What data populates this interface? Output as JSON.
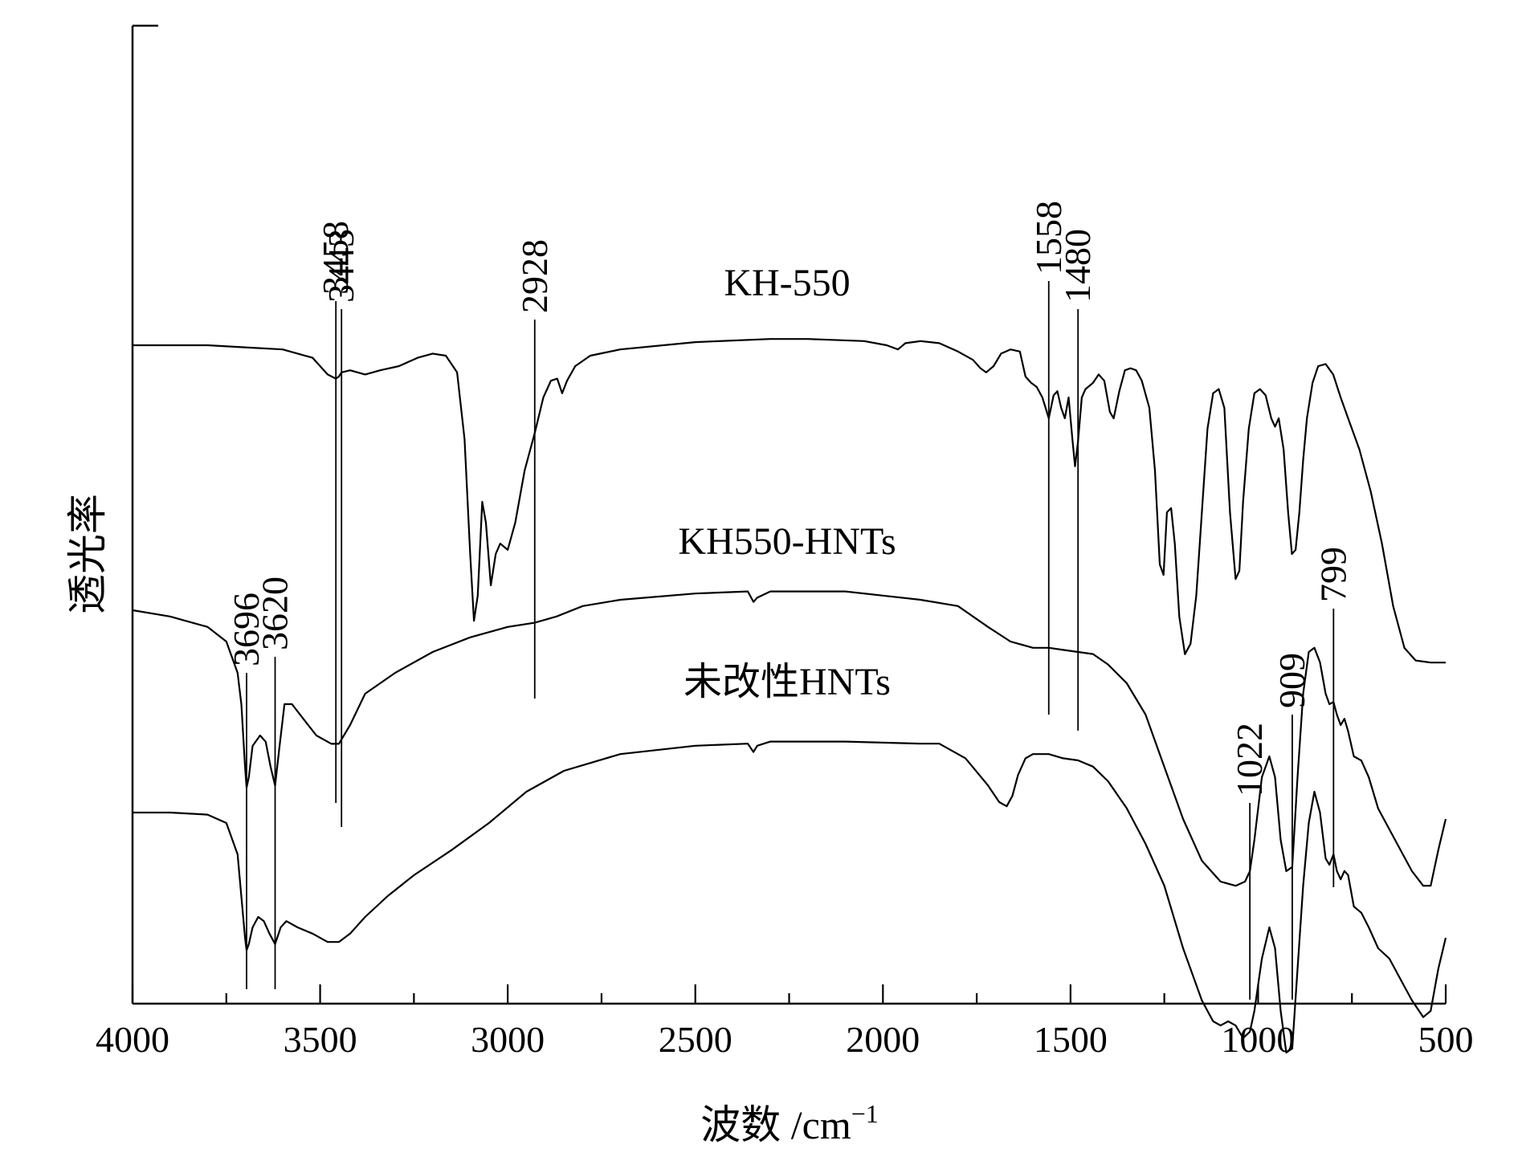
{
  "chart_data": {
    "type": "line",
    "title": "",
    "xlabel": "波数 /cm",
    "xlabel_sup": "−1",
    "ylabel": "透光率",
    "xlim": [
      4000,
      500
    ],
    "x_reversed": true,
    "grid": false,
    "xticks": [
      "4000",
      "3500",
      "3000",
      "2500",
      "2000",
      "1500",
      "1000",
      "500"
    ],
    "series": [
      {
        "name": "KH-550",
        "points": [
          [
            4000,
            0.0
          ],
          [
            3800,
            0.0
          ],
          [
            3700,
            -0.1
          ],
          [
            3600,
            -0.2
          ],
          [
            3520,
            -0.6
          ],
          [
            3480,
            -1.4
          ],
          [
            3458,
            -1.6
          ],
          [
            3450,
            -1.5
          ],
          [
            3443,
            -1.3
          ],
          [
            3420,
            -1.2
          ],
          [
            3380,
            -1.4
          ],
          [
            3340,
            -1.2
          ],
          [
            3290,
            -1.0
          ],
          [
            3240,
            -0.6
          ],
          [
            3200,
            -0.4
          ],
          [
            3165,
            -0.5
          ],
          [
            3135,
            -1.3
          ],
          [
            3115,
            -4.5
          ],
          [
            3100,
            -10.0
          ],
          [
            3090,
            -13.2
          ],
          [
            3080,
            -12.0
          ],
          [
            3068,
            -7.5
          ],
          [
            3058,
            -8.5
          ],
          [
            3045,
            -11.5
          ],
          [
            3032,
            -10.0
          ],
          [
            3020,
            -9.5
          ],
          [
            3000,
            -9.8
          ],
          [
            2980,
            -8.5
          ],
          [
            2955,
            -6.0
          ],
          [
            2928,
            -4.2
          ],
          [
            2905,
            -2.5
          ],
          [
            2885,
            -1.7
          ],
          [
            2868,
            -1.6
          ],
          [
            2855,
            -2.3
          ],
          [
            2842,
            -1.7
          ],
          [
            2820,
            -1.0
          ],
          [
            2780,
            -0.5
          ],
          [
            2700,
            -0.2
          ],
          [
            2500,
            0.15
          ],
          [
            2300,
            0.3
          ],
          [
            2200,
            0.3
          ],
          [
            2050,
            0.2
          ],
          [
            1990,
            0.0
          ],
          [
            1960,
            -0.2
          ],
          [
            1940,
            0.1
          ],
          [
            1900,
            0.2
          ],
          [
            1850,
            0.1
          ],
          [
            1800,
            -0.3
          ],
          [
            1760,
            -0.7
          ],
          [
            1740,
            -1.1
          ],
          [
            1725,
            -1.3
          ],
          [
            1705,
            -1.0
          ],
          [
            1685,
            -0.4
          ],
          [
            1660,
            -0.2
          ],
          [
            1635,
            -0.3
          ],
          [
            1620,
            -1.5
          ],
          [
            1605,
            -1.8
          ],
          [
            1590,
            -2.0
          ],
          [
            1575,
            -2.5
          ],
          [
            1558,
            -3.5
          ],
          [
            1545,
            -2.4
          ],
          [
            1535,
            -2.2
          ],
          [
            1525,
            -3.0
          ],
          [
            1515,
            -3.5
          ],
          [
            1505,
            -2.5
          ],
          [
            1495,
            -4.5
          ],
          [
            1488,
            -5.8
          ],
          [
            1480,
            -4.6
          ],
          [
            1470,
            -2.5
          ],
          [
            1460,
            -2.1
          ],
          [
            1440,
            -1.8
          ],
          [
            1425,
            -1.4
          ],
          [
            1410,
            -1.7
          ],
          [
            1395,
            -3.2
          ],
          [
            1385,
            -3.5
          ],
          [
            1370,
            -2.2
          ],
          [
            1355,
            -1.2
          ],
          [
            1340,
            -1.1
          ],
          [
            1325,
            -1.2
          ],
          [
            1310,
            -1.7
          ],
          [
            1290,
            -3.0
          ],
          [
            1275,
            -6.0
          ],
          [
            1262,
            -10.5
          ],
          [
            1252,
            -11.0
          ],
          [
            1243,
            -8.0
          ],
          [
            1232,
            -7.8
          ],
          [
            1222,
            -9.5
          ],
          [
            1210,
            -13.0
          ],
          [
            1195,
            -14.8
          ],
          [
            1180,
            -14.3
          ],
          [
            1165,
            -12.0
          ],
          [
            1150,
            -8.0
          ],
          [
            1135,
            -4.0
          ],
          [
            1120,
            -2.3
          ],
          [
            1105,
            -2.1
          ],
          [
            1090,
            -3.0
          ],
          [
            1075,
            -8.0
          ],
          [
            1060,
            -11.2
          ],
          [
            1050,
            -10.8
          ],
          [
            1040,
            -7.5
          ],
          [
            1025,
            -4.0
          ],
          [
            1010,
            -2.3
          ],
          [
            995,
            -2.1
          ],
          [
            980,
            -2.4
          ],
          [
            965,
            -3.5
          ],
          [
            955,
            -3.9
          ],
          [
            945,
            -3.5
          ],
          [
            932,
            -5.0
          ],
          [
            920,
            -8.0
          ],
          [
            910,
            -10.0
          ],
          [
            900,
            -9.8
          ],
          [
            890,
            -8.0
          ],
          [
            880,
            -5.5
          ],
          [
            870,
            -3.5
          ],
          [
            855,
            -1.8
          ],
          [
            840,
            -1.0
          ],
          [
            820,
            -0.9
          ],
          [
            800,
            -1.4
          ],
          [
            780,
            -2.5
          ],
          [
            760,
            -3.5
          ],
          [
            730,
            -5.0
          ],
          [
            700,
            -7.0
          ],
          [
            670,
            -9.5
          ],
          [
            640,
            -12.5
          ],
          [
            610,
            -14.5
          ],
          [
            580,
            -15.1
          ],
          [
            540,
            -15.2
          ],
          [
            500,
            -15.2
          ]
        ]
      },
      {
        "name": "KH550-HNTs",
        "points": [
          [
            4000,
            0.0
          ],
          [
            3900,
            -0.3
          ],
          [
            3800,
            -0.8
          ],
          [
            3750,
            -1.5
          ],
          [
            3720,
            -3.0
          ],
          [
            3710,
            -4.5
          ],
          [
            3700,
            -7.5
          ],
          [
            3696,
            -8.5
          ],
          [
            3690,
            -8.0
          ],
          [
            3680,
            -6.5
          ],
          [
            3660,
            -6.0
          ],
          [
            3645,
            -6.3
          ],
          [
            3632,
            -7.5
          ],
          [
            3620,
            -8.4
          ],
          [
            3608,
            -6.5
          ],
          [
            3595,
            -4.5
          ],
          [
            3575,
            -4.5
          ],
          [
            3545,
            -5.2
          ],
          [
            3510,
            -6.0
          ],
          [
            3490,
            -6.2
          ],
          [
            3470,
            -6.4
          ],
          [
            3450,
            -6.4
          ],
          [
            3420,
            -5.5
          ],
          [
            3380,
            -4.0
          ],
          [
            3300,
            -3.0
          ],
          [
            3200,
            -2.0
          ],
          [
            3100,
            -1.3
          ],
          [
            3000,
            -0.8
          ],
          [
            2928,
            -0.6
          ],
          [
            2870,
            -0.3
          ],
          [
            2800,
            0.2
          ],
          [
            2700,
            0.5
          ],
          [
            2500,
            0.8
          ],
          [
            2360,
            0.9
          ],
          [
            2345,
            0.4
          ],
          [
            2335,
            0.6
          ],
          [
            2300,
            0.9
          ],
          [
            2100,
            0.9
          ],
          [
            2000,
            0.7
          ],
          [
            1900,
            0.5
          ],
          [
            1800,
            0.2
          ],
          [
            1720,
            -0.8
          ],
          [
            1660,
            -1.5
          ],
          [
            1600,
            -1.8
          ],
          [
            1558,
            -1.8
          ],
          [
            1520,
            -1.9
          ],
          [
            1480,
            -2.0
          ],
          [
            1440,
            -2.1
          ],
          [
            1400,
            -2.6
          ],
          [
            1350,
            -3.5
          ],
          [
            1300,
            -5.0
          ],
          [
            1250,
            -7.5
          ],
          [
            1200,
            -10.0
          ],
          [
            1150,
            -12.0
          ],
          [
            1100,
            -13.0
          ],
          [
            1060,
            -13.2
          ],
          [
            1035,
            -13.0
          ],
          [
            1022,
            -12.5
          ],
          [
            1010,
            -11.0
          ],
          [
            990,
            -8.0
          ],
          [
            970,
            -7.0
          ],
          [
            955,
            -8.0
          ],
          [
            940,
            -11.0
          ],
          [
            925,
            -12.5
          ],
          [
            909,
            -12.3
          ],
          [
            895,
            -8.0
          ],
          [
            880,
            -4.0
          ],
          [
            865,
            -2.0
          ],
          [
            850,
            -1.8
          ],
          [
            835,
            -2.5
          ],
          [
            820,
            -4.0
          ],
          [
            810,
            -4.5
          ],
          [
            799,
            -4.4
          ],
          [
            790,
            -5.0
          ],
          [
            780,
            -5.5
          ],
          [
            770,
            -5.2
          ],
          [
            760,
            -5.8
          ],
          [
            745,
            -7.0
          ],
          [
            725,
            -7.2
          ],
          [
            705,
            -8.0
          ],
          [
            680,
            -9.5
          ],
          [
            650,
            -10.5
          ],
          [
            620,
            -11.5
          ],
          [
            590,
            -12.5
          ],
          [
            560,
            -13.2
          ],
          [
            540,
            -13.2
          ],
          [
            520,
            -11.5
          ],
          [
            500,
            -10.0
          ]
        ]
      },
      {
        "name": "未改性HNTs",
        "points": [
          [
            4000,
            0.0
          ],
          [
            3900,
            0.0
          ],
          [
            3800,
            -0.1
          ],
          [
            3750,
            -0.5
          ],
          [
            3720,
            -2.0
          ],
          [
            3700,
            -6.0
          ],
          [
            3696,
            -6.6
          ],
          [
            3690,
            -6.3
          ],
          [
            3680,
            -5.5
          ],
          [
            3665,
            -5.0
          ],
          [
            3650,
            -5.2
          ],
          [
            3635,
            -5.8
          ],
          [
            3620,
            -6.3
          ],
          [
            3605,
            -5.5
          ],
          [
            3590,
            -5.2
          ],
          [
            3560,
            -5.5
          ],
          [
            3520,
            -5.8
          ],
          [
            3480,
            -6.2
          ],
          [
            3450,
            -6.2
          ],
          [
            3420,
            -5.8
          ],
          [
            3380,
            -5.0
          ],
          [
            3320,
            -4.0
          ],
          [
            3250,
            -3.0
          ],
          [
            3150,
            -1.8
          ],
          [
            3050,
            -0.5
          ],
          [
            2950,
            1.0
          ],
          [
            2850,
            2.0
          ],
          [
            2700,
            2.8
          ],
          [
            2500,
            3.2
          ],
          [
            2360,
            3.3
          ],
          [
            2345,
            2.9
          ],
          [
            2335,
            3.2
          ],
          [
            2300,
            3.4
          ],
          [
            2100,
            3.4
          ],
          [
            1900,
            3.3
          ],
          [
            1850,
            3.3
          ],
          [
            1780,
            2.6
          ],
          [
            1720,
            1.3
          ],
          [
            1690,
            0.5
          ],
          [
            1670,
            0.3
          ],
          [
            1655,
            0.8
          ],
          [
            1640,
            1.8
          ],
          [
            1620,
            2.6
          ],
          [
            1600,
            2.8
          ],
          [
            1558,
            2.8
          ],
          [
            1520,
            2.6
          ],
          [
            1480,
            2.5
          ],
          [
            1440,
            2.2
          ],
          [
            1400,
            1.5
          ],
          [
            1350,
            0.2
          ],
          [
            1300,
            -1.5
          ],
          [
            1250,
            -3.5
          ],
          [
            1200,
            -6.5
          ],
          [
            1150,
            -9.0
          ],
          [
            1120,
            -10.0
          ],
          [
            1100,
            -10.2
          ],
          [
            1080,
            -10.0
          ],
          [
            1060,
            -10.2
          ],
          [
            1040,
            -10.8
          ],
          [
            1022,
            -10.5
          ],
          [
            1010,
            -9.5
          ],
          [
            990,
            -7.0
          ],
          [
            970,
            -5.5
          ],
          [
            955,
            -6.5
          ],
          [
            940,
            -9.5
          ],
          [
            925,
            -11.5
          ],
          [
            909,
            -11.3
          ],
          [
            895,
            -7.5
          ],
          [
            880,
            -3.5
          ],
          [
            865,
            -0.5
          ],
          [
            850,
            1.0
          ],
          [
            835,
            0.0
          ],
          [
            820,
            -2.2
          ],
          [
            810,
            -2.5
          ],
          [
            799,
            -2.0
          ],
          [
            790,
            -2.8
          ],
          [
            780,
            -3.2
          ],
          [
            770,
            -2.8
          ],
          [
            760,
            -3.0
          ],
          [
            745,
            -4.5
          ],
          [
            725,
            -4.8
          ],
          [
            705,
            -5.5
          ],
          [
            680,
            -6.5
          ],
          [
            650,
            -7.0
          ],
          [
            620,
            -8.0
          ],
          [
            590,
            -9.0
          ],
          [
            560,
            -9.8
          ],
          [
            540,
            -9.5
          ],
          [
            520,
            -7.5
          ],
          [
            500,
            -6.0
          ]
        ]
      }
    ],
    "peak_labels": [
      {
        "text": "3458",
        "x": 3458
      },
      {
        "text": "3443",
        "x": 3443
      },
      {
        "text": "2928",
        "x": 2928
      },
      {
        "text": "1558",
        "x": 1558
      },
      {
        "text": "1480",
        "x": 1480
      },
      {
        "text": "3696",
        "x": 3696
      },
      {
        "text": "3620",
        "x": 3620
      },
      {
        "text": "1022",
        "x": 1022
      },
      {
        "text": "909",
        "x": 909
      },
      {
        "text": "799",
        "x": 799
      }
    ]
  }
}
